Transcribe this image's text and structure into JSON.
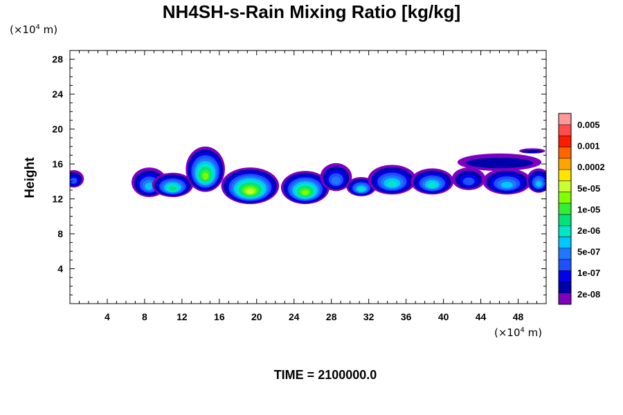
{
  "title": "NH4SH-s-Rain Mixing Ratio [kg/kg]",
  "y_unit": {
    "prefix": "(×10",
    "exp": "4",
    "suffix": " m)"
  },
  "x_unit": {
    "prefix": "(×10",
    "exp": "4",
    "suffix": " m)"
  },
  "footer": "TIME = 2100000.0",
  "chart_data": {
    "type": "heatmap",
    "title": "NH4SH-s-Rain Mixing Ratio [kg/kg]",
    "ylabel": "Height",
    "xlabel": "",
    "xlim": [
      0,
      51
    ],
    "ylim": [
      0,
      29
    ],
    "x_ticks": [
      4,
      8,
      12,
      16,
      20,
      24,
      28,
      32,
      36,
      40,
      44,
      48
    ],
    "y_ticks": [
      4,
      8,
      12,
      16,
      20,
      24,
      28
    ],
    "colorbar": {
      "labels": [
        "0.005",
        "0.001",
        "0.0002",
        "5e-05",
        "1e-05",
        "2e-06",
        "5e-07",
        "1e-07",
        "2e-08"
      ],
      "colors_top_to_bottom": [
        "#ff9999",
        "#ff4d4d",
        "#ff1a00",
        "#ff6600",
        "#ffa500",
        "#ffe600",
        "#ccff33",
        "#7fff00",
        "#33ee33",
        "#00e27a",
        "#00e6c8",
        "#00c8ff",
        "#1e78ff",
        "#1e50ff",
        "#0000ee",
        "#0000aa",
        "#8000c0"
      ]
    },
    "clouds": [
      {
        "x": 0.4,
        "y": 14.3,
        "rx": 1.1,
        "ry": 1.0,
        "level": 3
      },
      {
        "x": 8.5,
        "y": 13.9,
        "rx": 1.9,
        "ry": 1.7,
        "level": 5
      },
      {
        "x": 11.0,
        "y": 13.6,
        "rx": 2.2,
        "ry": 1.4,
        "level": 7
      },
      {
        "x": 14.5,
        "y": 15.4,
        "rx": 2.1,
        "ry": 2.6,
        "level": 9
      },
      {
        "x": 19.3,
        "y": 13.5,
        "rx": 3.1,
        "ry": 2.1,
        "level": 10
      },
      {
        "x": 25.2,
        "y": 13.3,
        "rx": 2.6,
        "ry": 1.9,
        "level": 9
      },
      {
        "x": 28.5,
        "y": 14.5,
        "rx": 1.7,
        "ry": 1.6,
        "level": 4
      },
      {
        "x": 31.2,
        "y": 13.4,
        "rx": 1.6,
        "ry": 1.1,
        "level": 6
      },
      {
        "x": 34.5,
        "y": 14.2,
        "rx": 2.6,
        "ry": 1.7,
        "level": 6
      },
      {
        "x": 38.8,
        "y": 14.0,
        "rx": 2.3,
        "ry": 1.5,
        "level": 6
      },
      {
        "x": 42.7,
        "y": 14.3,
        "rx": 1.8,
        "ry": 1.3,
        "level": 3
      },
      {
        "x": 46.8,
        "y": 14.0,
        "rx": 2.6,
        "ry": 1.5,
        "level": 5
      },
      {
        "x": 50.2,
        "y": 14.1,
        "rx": 1.3,
        "ry": 1.4,
        "level": 5
      }
    ],
    "anvil": [
      {
        "x": 46.0,
        "y": 16.2,
        "rx": 4.5,
        "ry": 1.0
      },
      {
        "x": 49.5,
        "y": 17.5,
        "rx": 1.4,
        "ry": 0.3
      }
    ]
  }
}
